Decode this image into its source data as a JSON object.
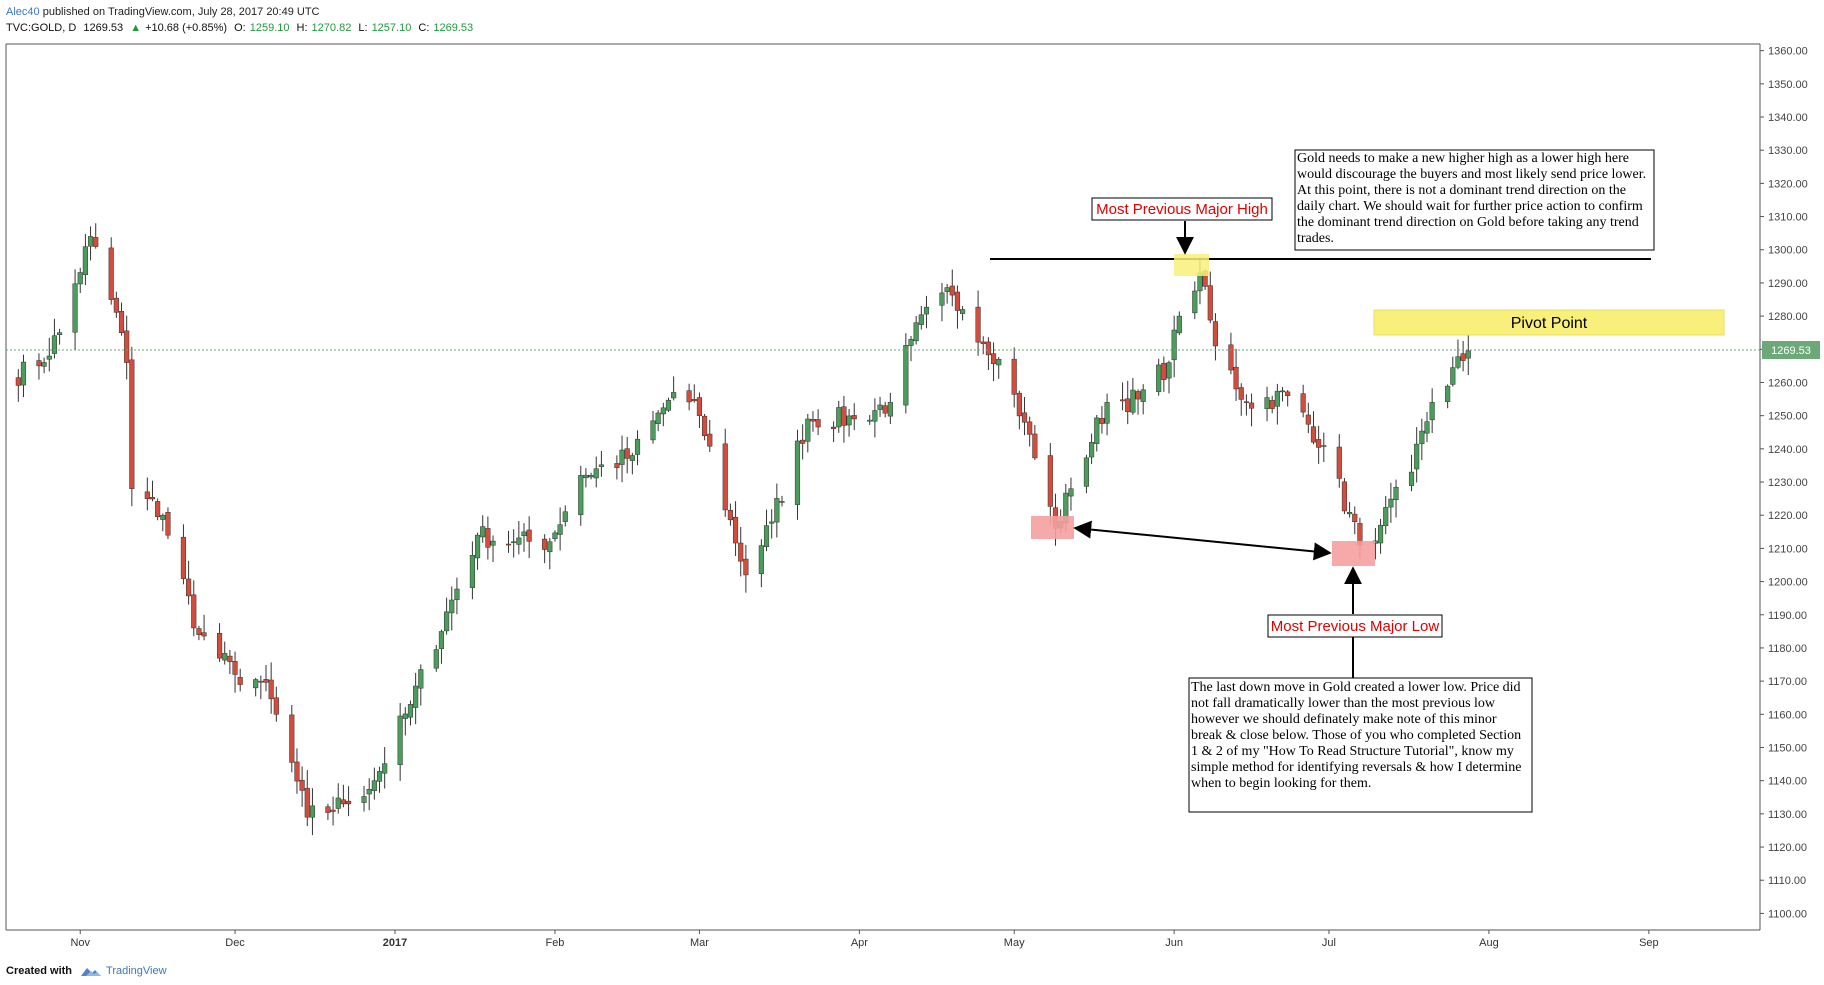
{
  "header": {
    "user": "Alec40",
    "published": "published on TradingView.com, July 28, 2017 20:49 UTC"
  },
  "ohlc": {
    "symbol": "TVC:GOLD, D",
    "last": "1269.53",
    "change": "+10.68 (+0.85%)",
    "open_label": "O:",
    "open": "1259.10",
    "high_label": "H:",
    "high": "1270.82",
    "low_label": "L:",
    "low": "1257.10",
    "close_label": "C:",
    "close": "1269.53"
  },
  "footer": {
    "created_with": "Created with",
    "brand": "TradingView"
  },
  "colors": {
    "up": "#4a9d5a",
    "down": "#d44c3c",
    "highlight_yellow": "#f8f07a",
    "highlight_red": "#f4a0a0",
    "price_tag": "#6ca878",
    "annotation_red": "#e00000"
  },
  "chart_data": {
    "type": "candlestick",
    "symbol": "TVC:GOLD",
    "interval": "D",
    "ylim": [
      1095,
      1362
    ],
    "y_ticks": [
      "1360.00",
      "1350.00",
      "1340.00",
      "1330.00",
      "1320.00",
      "1310.00",
      "1300.00",
      "1290.00",
      "1280.00",
      "1270.00",
      "1260.00",
      "1250.00",
      "1240.00",
      "1230.00",
      "1220.00",
      "1210.00",
      "1200.00",
      "1190.00",
      "1180.00",
      "1170.00",
      "1160.00",
      "1150.00",
      "1140.00",
      "1130.00",
      "1120.00",
      "1110.00",
      "1100.00"
    ],
    "x_ticks": [
      "Nov",
      "Dec",
      "2017",
      "Feb",
      "Mar",
      "Apr",
      "May",
      "Jun",
      "Jul",
      "Aug",
      "Sep"
    ],
    "current_price_label": "1269.53",
    "current_price": 1269.53,
    "key_levels": {
      "major_high": 1296,
      "pivot_zone": [
        1275,
        1282
      ]
    },
    "anchors": [
      [
        "2016-10-19",
        1262
      ],
      [
        "2016-10-24",
        1265
      ],
      [
        "2016-10-28",
        1275
      ],
      [
        "2016-11-03",
        1304
      ],
      [
        "2016-11-09",
        1275
      ],
      [
        "2016-11-10",
        1266
      ],
      [
        "2016-11-11",
        1228
      ],
      [
        "2016-11-17",
        1220
      ],
      [
        "2016-11-24",
        1184
      ],
      [
        "2016-12-01",
        1172
      ],
      [
        "2016-12-06",
        1170
      ],
      [
        "2016-12-09",
        1160
      ],
      [
        "2016-12-15",
        1129
      ],
      [
        "2016-12-22",
        1133
      ],
      [
        "2016-12-28",
        1140
      ],
      [
        "2017-01-04",
        1163
      ],
      [
        "2017-01-17",
        1214
      ],
      [
        "2017-01-24",
        1212
      ],
      [
        "2017-01-31",
        1212
      ],
      [
        "2017-02-06",
        1232
      ],
      [
        "2017-02-16",
        1238
      ],
      [
        "2017-02-24",
        1257
      ],
      [
        "2017-03-01",
        1250
      ],
      [
        "2017-03-10",
        1202
      ],
      [
        "2017-03-15",
        1218
      ],
      [
        "2017-03-22",
        1249
      ],
      [
        "2017-03-31",
        1249
      ],
      [
        "2017-04-07",
        1254
      ],
      [
        "2017-04-11",
        1273
      ],
      [
        "2017-04-17",
        1287
      ],
      [
        "2017-04-21",
        1282
      ],
      [
        "2017-04-28",
        1267
      ],
      [
        "2017-05-03",
        1248
      ],
      [
        "2017-05-09",
        1216
      ],
      [
        "2017-05-12",
        1228
      ],
      [
        "2017-05-19",
        1254
      ],
      [
        "2017-05-25",
        1255
      ],
      [
        "2017-05-31",
        1266
      ],
      [
        "2017-06-02",
        1280
      ],
      [
        "2017-06-06",
        1293
      ],
      [
        "2017-06-09",
        1271
      ],
      [
        "2017-06-15",
        1254
      ],
      [
        "2017-06-23",
        1256
      ],
      [
        "2017-06-30",
        1241
      ],
      [
        "2017-07-07",
        1211
      ],
      [
        "2017-07-11",
        1217
      ],
      [
        "2017-07-17",
        1233
      ],
      [
        "2017-07-21",
        1254
      ],
      [
        "2017-07-28",
        1269.53
      ]
    ],
    "annotations": {
      "top_note": "Gold needs to make a new higher high as a lower high here would discourage the buyers and most likely send price lower. At this point, there is not a dominant trend direction on the daily chart. We should wait for further price action to confirm the dominant trend direction on Gold before taking any trend trades.",
      "major_high_label": "Most Previous Major High",
      "pivot_label": "Pivot Point",
      "major_low_label": "Most Previous Major Low",
      "bottom_note": "The last down move in Gold created a lower low. Price did not fall dramatically lower than the most previous low however we should definately make note of this minor break & close below. Those of you who completed Section 1 & 2 of my \"How To Read Structure Tutorial\", know my simple method for identifying reversals & how I determine when to begin looking for them."
    }
  }
}
